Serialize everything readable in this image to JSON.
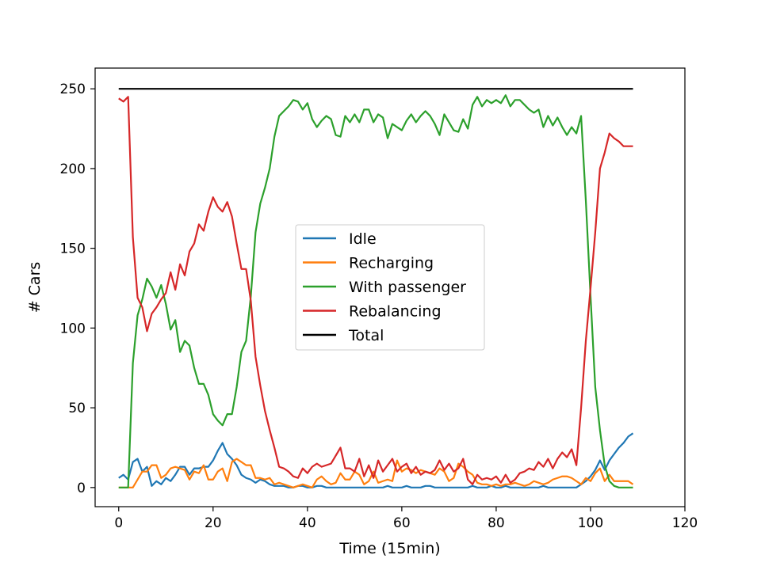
{
  "chart_data": {
    "type": "line",
    "xlabel": "Time (15min)",
    "ylabel": "# Cars",
    "xlim": [
      -5,
      120
    ],
    "ylim": [
      -12,
      263
    ],
    "xticks": [
      0,
      20,
      40,
      60,
      80,
      100,
      120
    ],
    "yticks": [
      0,
      50,
      100,
      150,
      200,
      250
    ],
    "grid": false,
    "legend_position": "center",
    "series": [
      {
        "name": "Idle",
        "color": "#1f77b4",
        "x": [
          0,
          1,
          2,
          3,
          4,
          5,
          6,
          7,
          8,
          9,
          10,
          11,
          12,
          13,
          14,
          15,
          16,
          17,
          18,
          19,
          20,
          21,
          22,
          23,
          24,
          25,
          26,
          27,
          28,
          29,
          30,
          31,
          32,
          33,
          34,
          35,
          36,
          37,
          38,
          39,
          40,
          41,
          42,
          43,
          44,
          45,
          46,
          47,
          48,
          49,
          50,
          51,
          52,
          53,
          54,
          55,
          56,
          57,
          58,
          59,
          60,
          61,
          62,
          63,
          64,
          65,
          66,
          67,
          68,
          69,
          70,
          71,
          72,
          73,
          74,
          75,
          76,
          77,
          78,
          79,
          80,
          81,
          82,
          83,
          84,
          85,
          86,
          87,
          88,
          89,
          90,
          91,
          92,
          93,
          94,
          95,
          96,
          97,
          98,
          99,
          100,
          101,
          102,
          103,
          104,
          105,
          106,
          107,
          108,
          109
        ],
        "values": [
          6,
          8,
          5,
          16,
          18,
          10,
          13,
          1,
          4,
          2,
          6,
          4,
          8,
          13,
          13,
          8,
          12,
          12,
          13,
          13,
          17,
          23,
          28,
          21,
          18,
          14,
          8,
          6,
          5,
          3,
          5,
          4,
          2,
          1,
          1,
          1,
          0,
          0,
          1,
          1,
          0,
          0,
          1,
          1,
          0,
          0,
          0,
          0,
          0,
          0,
          0,
          0,
          0,
          0,
          0,
          0,
          0,
          1,
          0,
          0,
          0,
          1,
          0,
          0,
          0,
          1,
          1,
          0,
          0,
          0,
          0,
          0,
          0,
          0,
          0,
          1,
          0,
          0,
          0,
          1,
          0,
          0,
          1,
          0,
          0,
          0,
          0,
          0,
          0,
          0,
          1,
          0,
          0,
          0,
          0,
          0,
          0,
          0,
          2,
          4,
          7,
          11,
          17,
          11,
          17,
          21,
          25,
          28,
          32,
          34
        ]
      },
      {
        "name": "Recharging",
        "color": "#ff7f0e",
        "x": [
          0,
          1,
          2,
          3,
          4,
          5,
          6,
          7,
          8,
          9,
          10,
          11,
          12,
          13,
          14,
          15,
          16,
          17,
          18,
          19,
          20,
          21,
          22,
          23,
          24,
          25,
          26,
          27,
          28,
          29,
          30,
          31,
          32,
          33,
          34,
          35,
          36,
          37,
          38,
          39,
          40,
          41,
          42,
          43,
          44,
          45,
          46,
          47,
          48,
          49,
          50,
          51,
          52,
          53,
          54,
          55,
          56,
          57,
          58,
          59,
          60,
          61,
          62,
          63,
          64,
          65,
          66,
          67,
          68,
          69,
          70,
          71,
          72,
          73,
          74,
          75,
          76,
          77,
          78,
          79,
          80,
          81,
          82,
          83,
          84,
          85,
          86,
          87,
          88,
          89,
          90,
          91,
          92,
          93,
          94,
          95,
          96,
          97,
          98,
          99,
          100,
          101,
          102,
          103,
          104,
          105,
          106,
          107,
          108,
          109
        ],
        "values": [
          0,
          0,
          0,
          0,
          5,
          10,
          10,
          14,
          14,
          6,
          8,
          12,
          13,
          12,
          11,
          5,
          10,
          9,
          14,
          5,
          5,
          10,
          12,
          4,
          16,
          18,
          16,
          14,
          14,
          6,
          6,
          5,
          6,
          2,
          3,
          2,
          1,
          0,
          1,
          2,
          1,
          0,
          5,
          7,
          4,
          2,
          3,
          9,
          5,
          5,
          10,
          8,
          2,
          4,
          10,
          3,
          4,
          5,
          4,
          17,
          10,
          12,
          11,
          9,
          11,
          10,
          9,
          8,
          12,
          10,
          4,
          6,
          15,
          13,
          10,
          8,
          3,
          2,
          2,
          1,
          2,
          1,
          2,
          2,
          3,
          2,
          1,
          2,
          4,
          3,
          2,
          3,
          5,
          6,
          7,
          7,
          6,
          4,
          2,
          6,
          4,
          9,
          12,
          4,
          8,
          4,
          4,
          4,
          4,
          2
        ]
      },
      {
        "name": "With passenger",
        "color": "#2ca02c",
        "x": [
          0,
          1,
          2,
          3,
          4,
          5,
          6,
          7,
          8,
          9,
          10,
          11,
          12,
          13,
          14,
          15,
          16,
          17,
          18,
          19,
          20,
          21,
          22,
          23,
          24,
          25,
          26,
          27,
          28,
          29,
          30,
          31,
          32,
          33,
          34,
          35,
          36,
          37,
          38,
          39,
          40,
          41,
          42,
          43,
          44,
          45,
          46,
          47,
          48,
          49,
          50,
          51,
          52,
          53,
          54,
          55,
          56,
          57,
          58,
          59,
          60,
          61,
          62,
          63,
          64,
          65,
          66,
          67,
          68,
          69,
          70,
          71,
          72,
          73,
          74,
          75,
          76,
          77,
          78,
          79,
          80,
          81,
          82,
          83,
          84,
          85,
          86,
          87,
          88,
          89,
          90,
          91,
          92,
          93,
          94,
          95,
          96,
          97,
          98,
          99,
          100,
          101,
          102,
          103,
          104,
          105,
          106,
          107,
          108,
          109
        ],
        "values": [
          0,
          0,
          0,
          78,
          108,
          118,
          131,
          126,
          119,
          127,
          115,
          99,
          105,
          85,
          92,
          89,
          75,
          65,
          65,
          58,
          46,
          42,
          39,
          46,
          46,
          63,
          85,
          92,
          120,
          160,
          178,
          188,
          200,
          220,
          233,
          236,
          239,
          243,
          242,
          237,
          241,
          231,
          226,
          230,
          233,
          231,
          221,
          220,
          233,
          229,
          234,
          229,
          237,
          237,
          229,
          234,
          232,
          219,
          228,
          226,
          224,
          230,
          234,
          229,
          233,
          236,
          233,
          228,
          221,
          234,
          229,
          224,
          223,
          231,
          225,
          240,
          245,
          239,
          243,
          241,
          243,
          241,
          246,
          239,
          243,
          243,
          240,
          237,
          235,
          237,
          226,
          233,
          227,
          232,
          226,
          221,
          226,
          222,
          233,
          180,
          120,
          63,
          36,
          14,
          4,
          1,
          0,
          0,
          0,
          0
        ]
      },
      {
        "name": "Rebalancing",
        "color": "#d62728",
        "x": [
          0,
          1,
          2,
          3,
          4,
          5,
          6,
          7,
          8,
          9,
          10,
          11,
          12,
          13,
          14,
          15,
          16,
          17,
          18,
          19,
          20,
          21,
          22,
          23,
          24,
          25,
          26,
          27,
          28,
          29,
          30,
          31,
          32,
          33,
          34,
          35,
          36,
          37,
          38,
          39,
          40,
          41,
          42,
          43,
          44,
          45,
          46,
          47,
          48,
          49,
          50,
          51,
          52,
          53,
          54,
          55,
          56,
          57,
          58,
          59,
          60,
          61,
          62,
          63,
          64,
          65,
          66,
          67,
          68,
          69,
          70,
          71,
          72,
          73,
          74,
          75,
          76,
          77,
          78,
          79,
          80,
          81,
          82,
          83,
          84,
          85,
          86,
          87,
          88,
          89,
          90,
          91,
          92,
          93,
          94,
          95,
          96,
          97,
          98,
          99,
          100,
          101,
          102,
          103,
          104,
          105,
          106,
          107,
          108,
          109
        ],
        "values": [
          244,
          242,
          245,
          157,
          119,
          113,
          98,
          109,
          113,
          118,
          122,
          135,
          124,
          140,
          133,
          148,
          153,
          165,
          161,
          173,
          182,
          176,
          173,
          179,
          170,
          153,
          137,
          137,
          117,
          82,
          64,
          48,
          36,
          25,
          13,
          12,
          10,
          7,
          6,
          12,
          9,
          13,
          15,
          13,
          14,
          15,
          20,
          25,
          12,
          12,
          10,
          18,
          7,
          14,
          6,
          17,
          10,
          14,
          18,
          10,
          13,
          15,
          9,
          13,
          8,
          10,
          9,
          11,
          17,
          11,
          15,
          10,
          12,
          18,
          5,
          2,
          8,
          5,
          6,
          5,
          7,
          3,
          8,
          3,
          5,
          9,
          10,
          12,
          11,
          16,
          13,
          18,
          12,
          18,
          22,
          19,
          24,
          14,
          50,
          92,
          125,
          160,
          200,
          210,
          222,
          219,
          217,
          214,
          214,
          214
        ]
      },
      {
        "name": "Total",
        "color": "#000000",
        "x": [
          0,
          109
        ],
        "values": [
          250,
          250
        ]
      }
    ]
  }
}
